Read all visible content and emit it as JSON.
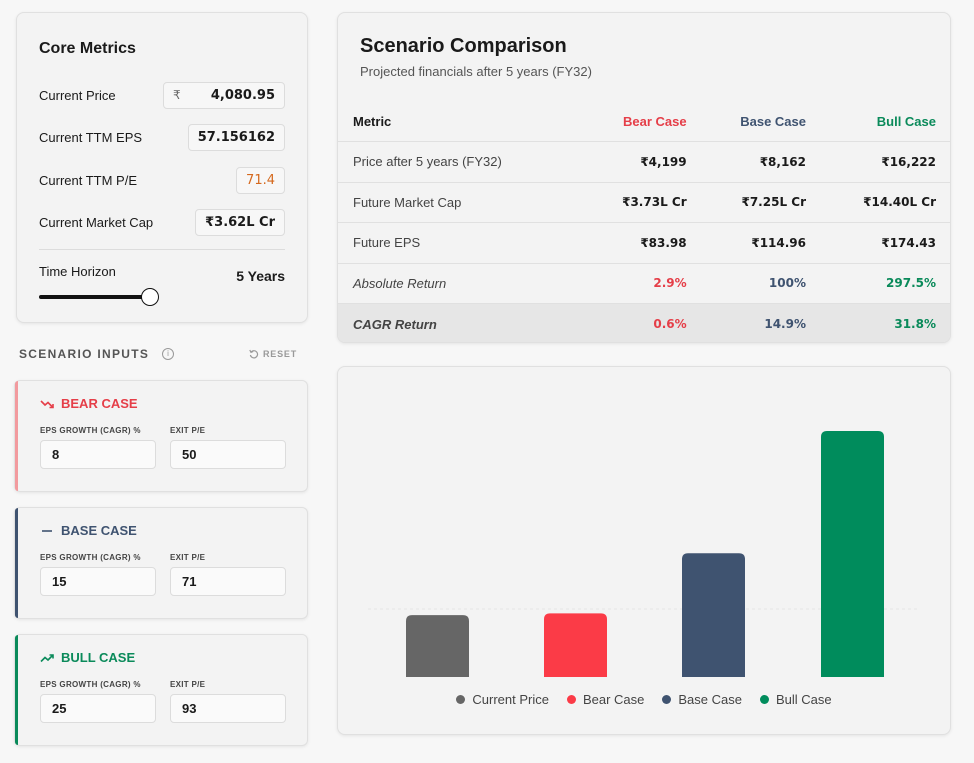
{
  "core_metrics": {
    "title": "Core Metrics",
    "current_price": {
      "label": "Current Price",
      "currency": "₹",
      "value": "4,080.95"
    },
    "ttm_eps": {
      "label": "Current TTM EPS",
      "value": "57.156162"
    },
    "ttm_pe": {
      "label": "Current TTM P/E",
      "value": "71.4"
    },
    "market_cap": {
      "label": "Current Market Cap",
      "value": "₹3.62L Cr"
    },
    "time_horizon": {
      "label": "Time Horizon",
      "value": "5 Years",
      "level": 1.0
    }
  },
  "scenario_inputs": {
    "title": "SCENARIO INPUTS",
    "reset_label": "RESET",
    "cases": [
      {
        "name": "BEAR CASE",
        "color": "#e53e48",
        "icon": "trending-down-icon",
        "eps_label": "EPS GROWTH (CAGR) %",
        "eps_value": "8",
        "pe_label": "EXIT P/E",
        "pe_value": "50"
      },
      {
        "name": "BASE CASE",
        "color": "#3f5370",
        "icon": "dash-icon",
        "eps_label": "EPS GROWTH (CAGR) %",
        "eps_value": "15",
        "pe_label": "EXIT P/E",
        "pe_value": "71"
      },
      {
        "name": "BULL CASE",
        "color": "#0a8a5a",
        "icon": "trending-up-icon",
        "eps_label": "EPS GROWTH (CAGR) %",
        "eps_value": "25",
        "pe_label": "EXIT P/E",
        "pe_value": "93"
      }
    ]
  },
  "comparison": {
    "title": "Scenario Comparison",
    "subtitle": "Projected financials after 5 years (FY32)",
    "headers": [
      "Metric",
      "Bear Case",
      "Base Case",
      "Bull Case"
    ],
    "rows": [
      {
        "metric": "Price after 5 years (FY32)",
        "bear": "₹4,199",
        "base": "₹8,162",
        "bull": "₹16,222"
      },
      {
        "metric": "Future Market Cap",
        "bear": "₹3.73L Cr",
        "base": "₹7.25L Cr",
        "bull": "₹14.40L Cr"
      },
      {
        "metric": "Future EPS",
        "bear": "₹83.98",
        "base": "₹114.96",
        "bull": "₹174.43"
      },
      {
        "metric": "Absolute Return",
        "bear": "2.9%",
        "base": "100%",
        "bull": "297.5%"
      },
      {
        "metric": "CAGR Return",
        "bear": "0.6%",
        "base": "14.9%",
        "bull": "31.8%"
      }
    ]
  },
  "chart_data": {
    "type": "bar",
    "categories": [
      "Current Price",
      "Bear Case",
      "Base Case",
      "Bull Case"
    ],
    "values": [
      4081,
      4199,
      8162,
      16222
    ],
    "colors": [
      "#666666",
      "#fb3b47",
      "#3f5370",
      "#008c5c"
    ],
    "ylim": [
      0,
      16222
    ],
    "grid": true,
    "legend": "bottom"
  }
}
